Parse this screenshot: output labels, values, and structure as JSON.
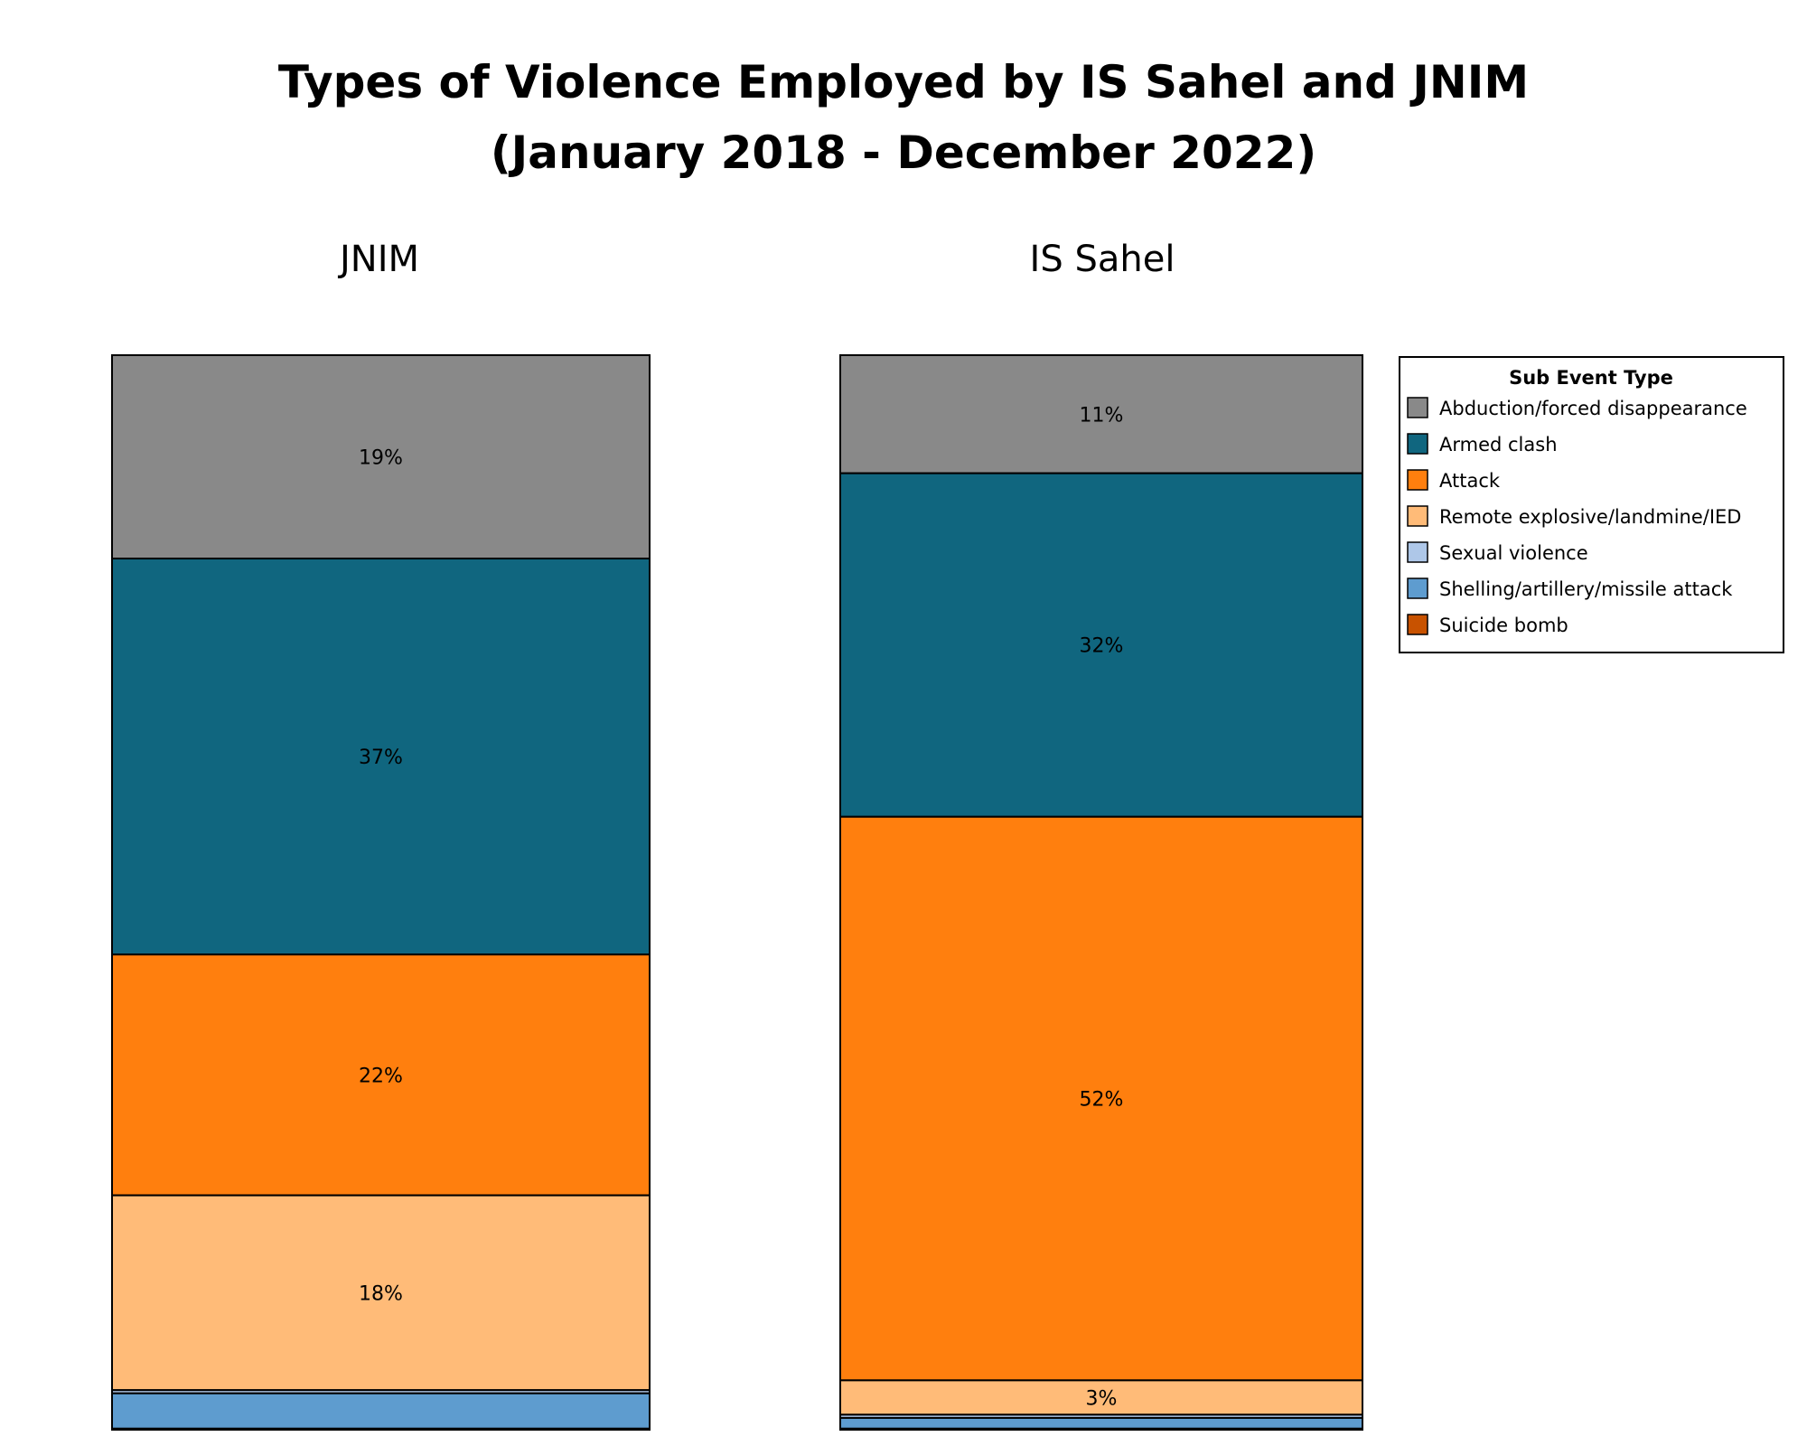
{
  "chart_data": {
    "type": "bar",
    "stacked": "percent",
    "title_line1": "Types of Violence Employed by IS Sahel and JNIM",
    "title_line2": "(January 2018 - December 2022)",
    "legend": {
      "title": "Sub Event Type",
      "placement": "right",
      "items": [
        {
          "name": "Abduction/forced disappearance",
          "color": "#898989"
        },
        {
          "name": "Armed clash",
          "color": "#10667f"
        },
        {
          "name": "Attack",
          "color": "#ff7f0e"
        },
        {
          "name": "Remote explosive/landmine/IED",
          "color": "#ffbb78"
        },
        {
          "name": "Sexual violence",
          "color": "#aec7e8"
        },
        {
          "name": "Shelling/artillery/missile attack",
          "color": "#5e9ccf"
        },
        {
          "name": "Suicide bomb",
          "color": "#c85200"
        }
      ]
    },
    "grid": false,
    "panels": [
      {
        "name": "JNIM",
        "segments": [
          {
            "type": "Abduction/forced disappearance",
            "value": 19,
            "label": "19%"
          },
          {
            "type": "Armed clash",
            "value": 37,
            "label": "37%"
          },
          {
            "type": "Attack",
            "value": 22.5,
            "label": "22%"
          },
          {
            "type": "Remote explosive/landmine/IED",
            "value": 18.2,
            "label": "18%"
          },
          {
            "type": "Sexual violence",
            "value": 0.3,
            "label": ""
          },
          {
            "type": "Shelling/artillery/missile attack",
            "value": 3.3,
            "label": ""
          },
          {
            "type": "Suicide bomb",
            "value": 0.1,
            "label": ""
          }
        ]
      },
      {
        "name": "IS Sahel",
        "segments": [
          {
            "type": "Abduction/forced disappearance",
            "value": 11,
            "label": "11%"
          },
          {
            "type": "Armed clash",
            "value": 32,
            "label": "32%"
          },
          {
            "type": "Attack",
            "value": 52.5,
            "label": "52%"
          },
          {
            "type": "Remote explosive/landmine/IED",
            "value": 3.2,
            "label": "3%"
          },
          {
            "type": "Sexual violence",
            "value": 0.3,
            "label": ""
          },
          {
            "type": "Shelling/artillery/missile attack",
            "value": 1.0,
            "label": ""
          },
          {
            "type": "Suicide bomb",
            "value": 0.1,
            "label": ""
          }
        ]
      }
    ]
  }
}
